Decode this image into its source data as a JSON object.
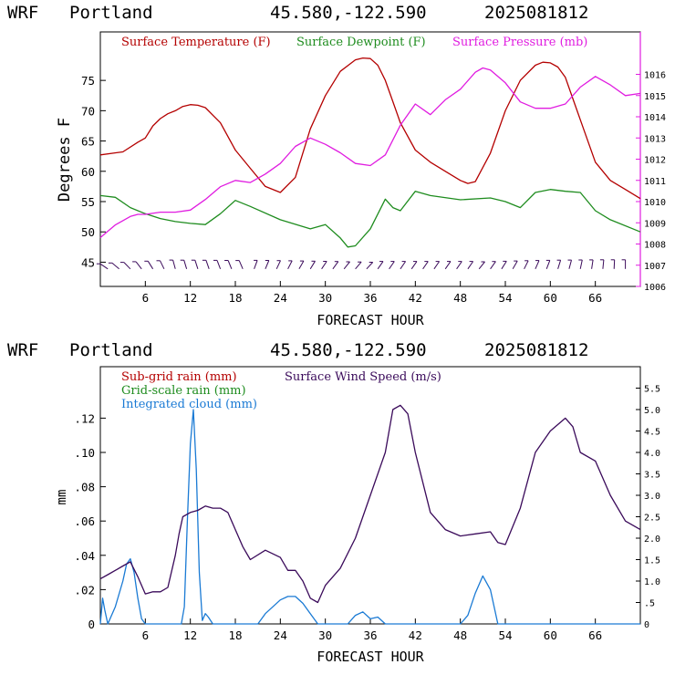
{
  "chart_data": [
    {
      "type": "line",
      "header": {
        "model": "WRF",
        "location": "Portland",
        "coords": "45.580,-122.590",
        "run": "2025081812"
      },
      "xlabel": "FORECAST HOUR",
      "ylabel": "Degrees F",
      "xlim": [
        0,
        72
      ],
      "ylim": [
        41,
        83
      ],
      "y2lim": [
        1006,
        1018
      ],
      "x_ticks": [
        6,
        12,
        18,
        24,
        30,
        36,
        42,
        48,
        54,
        60,
        66
      ],
      "y_ticks": [
        45,
        50,
        55,
        60,
        65,
        70,
        75
      ],
      "y2_ticks": [
        1006,
        1007,
        1008,
        1009,
        1010,
        1011,
        1012,
        1013,
        1014,
        1015,
        1016
      ],
      "legend": "top-left",
      "series": [
        {
          "name": "Surface Temperature (F)",
          "color": "#b40000",
          "axis": "left",
          "x": [
            0,
            3,
            5,
            6,
            7,
            8,
            9,
            10,
            11,
            12,
            13,
            14,
            16,
            18,
            20,
            22,
            24,
            26,
            28,
            30,
            32,
            34,
            35,
            36,
            37,
            38,
            39,
            40,
            42,
            44,
            46,
            48,
            49,
            50,
            52,
            54,
            56,
            58,
            59,
            60,
            61,
            62,
            63,
            64,
            66,
            68,
            70,
            72
          ],
          "y": [
            62.7,
            63.2,
            64.8,
            65.5,
            67.5,
            68.7,
            69.5,
            70.0,
            70.7,
            71.0,
            70.9,
            70.5,
            68.0,
            63.5,
            60.5,
            57.5,
            56.5,
            59.0,
            67.0,
            72.5,
            76.5,
            78.4,
            78.7,
            78.6,
            77.5,
            75.0,
            71.5,
            68.0,
            63.5,
            61.5,
            60.0,
            58.5,
            58.0,
            58.3,
            63.0,
            70.0,
            75.0,
            77.5,
            78.0,
            77.9,
            77.2,
            75.5,
            72.0,
            68.5,
            61.5,
            58.5,
            57.0,
            55.5
          ]
        },
        {
          "name": "Surface Dewpoint (F)",
          "color": "#1e8c1e",
          "axis": "left",
          "x": [
            0,
            2,
            4,
            6,
            8,
            10,
            12,
            14,
            16,
            18,
            20,
            24,
            28,
            30,
            32,
            33,
            34,
            36,
            38,
            39,
            40,
            42,
            44,
            48,
            52,
            54,
            56,
            58,
            60,
            62,
            64,
            66,
            68,
            72
          ],
          "y": [
            56.0,
            55.7,
            54.0,
            53.0,
            52.2,
            51.7,
            51.4,
            51.2,
            53.0,
            55.2,
            54.2,
            52.0,
            50.5,
            51.2,
            49.0,
            47.5,
            47.7,
            50.5,
            55.4,
            54.0,
            53.5,
            56.7,
            56.0,
            55.3,
            55.6,
            55.0,
            54.0,
            56.5,
            57.0,
            56.7,
            56.5,
            53.5,
            52.0,
            50.0
          ]
        },
        {
          "name": "Surface Pressure (mb)",
          "color": "#e01ce0",
          "axis": "right",
          "x": [
            0,
            1,
            2,
            3,
            4,
            5,
            6,
            8,
            10,
            12,
            14,
            16,
            18,
            20,
            22,
            24,
            26,
            28,
            30,
            32,
            34,
            36,
            38,
            40,
            42,
            44,
            46,
            48,
            50,
            51,
            52,
            54,
            56,
            58,
            60,
            62,
            64,
            66,
            68,
            70,
            72
          ],
          "y": [
            1008.3,
            1008.6,
            1008.9,
            1009.1,
            1009.3,
            1009.4,
            1009.4,
            1009.5,
            1009.5,
            1009.6,
            1010.1,
            1010.7,
            1011.0,
            1010.9,
            1011.3,
            1011.8,
            1012.6,
            1013.0,
            1012.7,
            1012.3,
            1011.8,
            1011.7,
            1012.2,
            1013.6,
            1014.6,
            1014.1,
            1014.8,
            1015.3,
            1016.1,
            1016.3,
            1016.2,
            1015.6,
            1014.7,
            1014.4,
            1014.4,
            1014.6,
            1015.4,
            1015.9,
            1015.5,
            1015.0,
            1015.1
          ]
        }
      ],
      "wind_barbs": {
        "x_start": 1,
        "x_step": 1.5,
        "y": 44.5,
        "color": "#3a0a5a"
      }
    },
    {
      "type": "line",
      "header": {
        "model": "WRF",
        "location": "Portland",
        "coords": "45.580,-122.590",
        "run": "2025081812"
      },
      "xlabel": "FORECAST HOUR",
      "ylabel": "mm",
      "xlim": [
        0,
        72
      ],
      "ylim": [
        0,
        0.15
      ],
      "y2lim": [
        0,
        6.0
      ],
      "x_ticks": [
        6,
        12,
        18,
        24,
        30,
        36,
        42,
        48,
        54,
        60,
        66
      ],
      "y_ticks": [
        0,
        0.02,
        0.04,
        0.06,
        0.08,
        0.1,
        0.12
      ],
      "y_tick_labels": [
        "0",
        ".02",
        ".04",
        ".06",
        ".08",
        ".10",
        ".12"
      ],
      "y2_ticks": [
        0,
        0.5,
        1.0,
        1.5,
        2.0,
        2.5,
        3.0,
        3.5,
        4.0,
        4.5,
        5.0,
        5.5
      ],
      "y2_tick_labels": [
        "0",
        ".5",
        "1.0",
        "1.5",
        "2.0",
        "2.5",
        "3.0",
        "3.5",
        "4.0",
        "4.5",
        "5.0",
        "5.5"
      ],
      "legend": "top-left",
      "series": [
        {
          "name": "Sub-grid rain (mm)",
          "color": "#b40000",
          "axis": "left",
          "x": [],
          "y": []
        },
        {
          "name": "Grid-scale rain (mm)",
          "color": "#1e8c1e",
          "axis": "left",
          "x": [],
          "y": []
        },
        {
          "name": "Integrated cloud (mm)",
          "color": "#1a7ad4",
          "axis": "left",
          "x": [
            0,
            0.3,
            0.6,
            1,
            2,
            3,
            3.5,
            4,
            4.5,
            5,
            5.5,
            6,
            6.5,
            7,
            10.8,
            11.2,
            11.6,
            12,
            12.4,
            12.8,
            13.2,
            13.6,
            14,
            14.4,
            15,
            21,
            22,
            24,
            25,
            26,
            27,
            28,
            29,
            33,
            34,
            35,
            36,
            37,
            38,
            48,
            49,
            50,
            51,
            52,
            53,
            72
          ],
          "y": [
            0,
            0.015,
            0.008,
            0,
            0.01,
            0.025,
            0.035,
            0.038,
            0.03,
            0.015,
            0.003,
            0,
            0,
            0,
            0,
            0.01,
            0.06,
            0.105,
            0.125,
            0.09,
            0.03,
            0.002,
            0.006,
            0.004,
            0,
            0,
            0.006,
            0.014,
            0.016,
            0.016,
            0.012,
            0.006,
            0,
            0,
            0.005,
            0.007,
            0.003,
            0.004,
            0,
            0,
            0.005,
            0.018,
            0.028,
            0.02,
            0,
            0
          ]
        },
        {
          "name": "Surface Wind Speed (m/s)",
          "color": "#3a0a5a",
          "axis": "right",
          "x": [
            0,
            1,
            2,
            3,
            4,
            5,
            6,
            7,
            8,
            9,
            10,
            10.5,
            11,
            12,
            13,
            14,
            15,
            16,
            17,
            18,
            19,
            20,
            22,
            24,
            25,
            26,
            27,
            28,
            29,
            30,
            32,
            34,
            36,
            38,
            39,
            40,
            41,
            42,
            44,
            46,
            48,
            50,
            52,
            53,
            54,
            56,
            58,
            60,
            62,
            63,
            64,
            66,
            68,
            70,
            72
          ],
          "y": [
            1.05,
            1.15,
            1.25,
            1.35,
            1.45,
            1.1,
            0.7,
            0.75,
            0.75,
            0.85,
            1.6,
            2.1,
            2.5,
            2.6,
            2.65,
            2.75,
            2.7,
            2.7,
            2.6,
            2.2,
            1.8,
            1.5,
            1.72,
            1.55,
            1.25,
            1.25,
            1.0,
            0.6,
            0.5,
            0.9,
            1.3,
            2.0,
            3.0,
            4.0,
            5.0,
            5.1,
            4.9,
            4.0,
            2.6,
            2.2,
            2.05,
            2.1,
            2.15,
            1.9,
            1.85,
            2.7,
            4.0,
            4.5,
            4.8,
            4.6,
            4.0,
            3.8,
            3.0,
            2.4,
            2.2
          ]
        }
      ]
    }
  ]
}
